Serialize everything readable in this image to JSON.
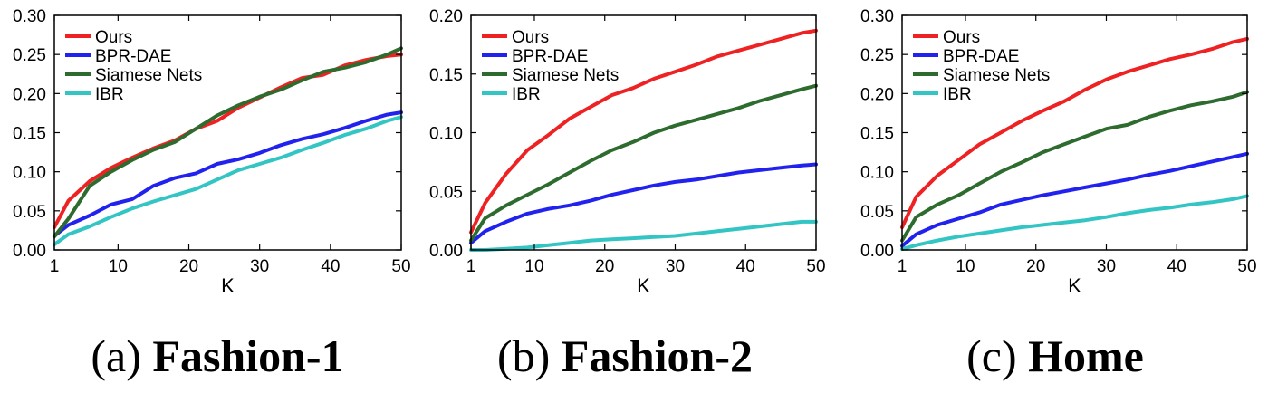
{
  "chart_data": [
    {
      "type": "line",
      "caption_prefix": "(a)",
      "caption_title": "Fashion-1",
      "xlabel": "K",
      "ylabel": "",
      "xlim": [
        1,
        50
      ],
      "ylim": [
        0.0,
        0.3
      ],
      "xticks": [
        1,
        10,
        20,
        30,
        40,
        50
      ],
      "yticks": [
        "0.00",
        "0.05",
        "0.10",
        "0.15",
        "0.20",
        "0.25",
        "0.30"
      ],
      "legend_position": "top-left",
      "grid": false,
      "x": [
        1,
        3,
        6,
        9,
        12,
        15,
        18,
        21,
        24,
        27,
        30,
        33,
        36,
        39,
        42,
        45,
        48,
        50
      ],
      "series": [
        {
          "name": "Ours",
          "color": "#ee2222",
          "values": [
            0.029,
            0.063,
            0.088,
            0.105,
            0.118,
            0.13,
            0.14,
            0.155,
            0.165,
            0.182,
            0.195,
            0.208,
            0.22,
            0.224,
            0.236,
            0.243,
            0.248,
            0.25
          ]
        },
        {
          "name": "BPR-DAE",
          "color": "#2222ee",
          "values": [
            0.018,
            0.032,
            0.044,
            0.058,
            0.065,
            0.082,
            0.092,
            0.098,
            0.11,
            0.116,
            0.124,
            0.134,
            0.142,
            0.148,
            0.156,
            0.165,
            0.173,
            0.176
          ]
        },
        {
          "name": "Siamese Nets",
          "color": "#2e6b2e",
          "values": [
            0.017,
            0.04,
            0.082,
            0.1,
            0.115,
            0.128,
            0.138,
            0.155,
            0.172,
            0.185,
            0.196,
            0.205,
            0.217,
            0.228,
            0.233,
            0.24,
            0.25,
            0.258
          ]
        },
        {
          "name": "IBR",
          "color": "#33c4c4",
          "values": [
            0.007,
            0.02,
            0.03,
            0.042,
            0.053,
            0.062,
            0.07,
            0.078,
            0.09,
            0.102,
            0.11,
            0.118,
            0.128,
            0.137,
            0.147,
            0.155,
            0.165,
            0.17
          ]
        }
      ]
    },
    {
      "type": "line",
      "caption_prefix": "(b)",
      "caption_title": "Fashion-2",
      "xlabel": "K",
      "ylabel": "",
      "xlim": [
        1,
        50
      ],
      "ylim": [
        0.0,
        0.2
      ],
      "xticks": [
        1,
        10,
        20,
        30,
        40,
        50
      ],
      "yticks": [
        "0.00",
        "0.05",
        "0.10",
        "0.15",
        "0.20"
      ],
      "legend_position": "top-left",
      "grid": false,
      "x": [
        1,
        3,
        6,
        9,
        12,
        15,
        18,
        21,
        24,
        27,
        30,
        33,
        36,
        39,
        42,
        45,
        48,
        50
      ],
      "series": [
        {
          "name": "Ours",
          "color": "#ee2222",
          "values": [
            0.015,
            0.04,
            0.065,
            0.085,
            0.098,
            0.112,
            0.122,
            0.132,
            0.138,
            0.146,
            0.152,
            0.158,
            0.165,
            0.17,
            0.175,
            0.18,
            0.185,
            0.187
          ]
        },
        {
          "name": "BPR-DAE",
          "color": "#2222ee",
          "values": [
            0.006,
            0.016,
            0.024,
            0.031,
            0.035,
            0.038,
            0.042,
            0.047,
            0.051,
            0.055,
            0.058,
            0.06,
            0.063,
            0.066,
            0.068,
            0.07,
            0.072,
            0.073
          ]
        },
        {
          "name": "Siamese Nets",
          "color": "#2e6b2e",
          "values": [
            0.008,
            0.027,
            0.038,
            0.047,
            0.056,
            0.066,
            0.076,
            0.085,
            0.092,
            0.1,
            0.106,
            0.111,
            0.116,
            0.121,
            0.127,
            0.132,
            0.137,
            0.14
          ]
        },
        {
          "name": "IBR",
          "color": "#33c4c4",
          "values": [
            0.0,
            0.0,
            0.001,
            0.002,
            0.004,
            0.006,
            0.008,
            0.009,
            0.01,
            0.011,
            0.012,
            0.014,
            0.016,
            0.018,
            0.02,
            0.022,
            0.024,
            0.024
          ]
        }
      ]
    },
    {
      "type": "line",
      "caption_prefix": "(c)",
      "caption_title": "Home",
      "xlabel": "K",
      "ylabel": "",
      "xlim": [
        1,
        50
      ],
      "ylim": [
        0.0,
        0.3
      ],
      "xticks": [
        1,
        10,
        20,
        30,
        40,
        50
      ],
      "yticks": [
        "0.00",
        "0.05",
        "0.10",
        "0.15",
        "0.20",
        "0.25",
        "0.30"
      ],
      "legend_position": "top-left",
      "grid": false,
      "x": [
        1,
        3,
        6,
        9,
        12,
        15,
        18,
        21,
        24,
        27,
        30,
        33,
        36,
        39,
        42,
        45,
        48,
        50
      ],
      "series": [
        {
          "name": "Ours",
          "color": "#ee2222",
          "values": [
            0.029,
            0.068,
            0.095,
            0.115,
            0.135,
            0.15,
            0.165,
            0.178,
            0.19,
            0.205,
            0.218,
            0.228,
            0.236,
            0.244,
            0.25,
            0.257,
            0.266,
            0.27
          ]
        },
        {
          "name": "BPR-DAE",
          "color": "#2222ee",
          "values": [
            0.005,
            0.02,
            0.032,
            0.04,
            0.048,
            0.058,
            0.064,
            0.07,
            0.075,
            0.08,
            0.085,
            0.09,
            0.096,
            0.101,
            0.107,
            0.113,
            0.119,
            0.123
          ]
        },
        {
          "name": "Siamese Nets",
          "color": "#2e6b2e",
          "values": [
            0.012,
            0.042,
            0.058,
            0.07,
            0.085,
            0.1,
            0.112,
            0.125,
            0.135,
            0.145,
            0.155,
            0.16,
            0.17,
            0.178,
            0.185,
            0.19,
            0.196,
            0.202
          ]
        },
        {
          "name": "IBR",
          "color": "#33c4c4",
          "values": [
            0.001,
            0.006,
            0.012,
            0.017,
            0.021,
            0.025,
            0.029,
            0.032,
            0.035,
            0.038,
            0.042,
            0.047,
            0.051,
            0.054,
            0.058,
            0.061,
            0.065,
            0.069
          ]
        }
      ]
    }
  ]
}
